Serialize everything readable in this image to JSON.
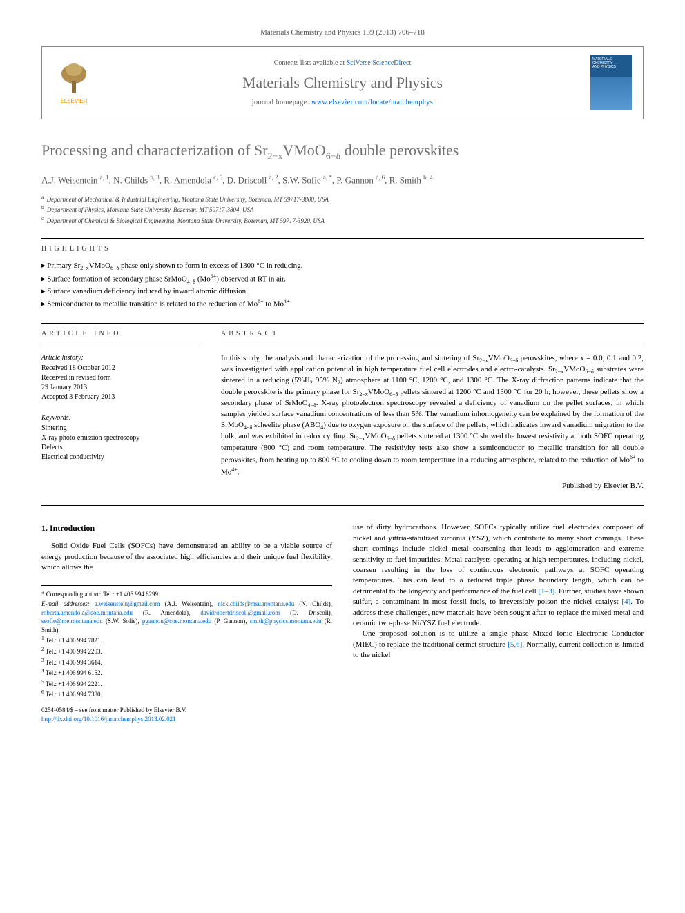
{
  "journal_ref": "Materials Chemistry and Physics 139 (2013) 706–718",
  "header": {
    "contents_prefix": "Contents lists available at ",
    "contents_link": "SciVerse ScienceDirect",
    "journal_name": "Materials Chemistry and Physics",
    "homepage_prefix": "journal homepage: ",
    "homepage_url": "www.elsevier.com/locate/matchemphys",
    "elsevier_label": "ELSEVIER"
  },
  "title_html": "Processing and characterization of Sr<sub>2−x</sub>VMoO<sub>6−δ</sub> double perovskites",
  "authors_html": "A.J. Weisentein <sup>a, 1</sup>, N. Childs <sup>b, 3</sup>, R. Amendola <sup>c, 5</sup>, D. Driscoll <sup>a, 2</sup>, S.W. Sofie <sup>a, *</sup>, P. Gannon <sup>c, 6</sup>, R. Smith <sup>b, 4</sup>",
  "affiliations": [
    {
      "sup": "a",
      "text": "Department of Mechanical & Industrial Engineering, Montana State University, Bozeman, MT 59717-3800, USA"
    },
    {
      "sup": "b",
      "text": "Department of Physics, Montana State University, Bozeman, MT 59717-3804, USA"
    },
    {
      "sup": "c",
      "text": "Department of Chemical & Biological Engineering, Montana State University, Bozeman, MT 59717-3920, USA"
    }
  ],
  "highlights_label": "HIGHLIGHTS",
  "highlights": [
    "▸ Primary Sr<sub>2−x</sub>VMoO<sub>6−δ</sub> phase only shown to form in excess of 1300 °C in reducing.",
    "▸ Surface formation of secondary phase SrMoO<sub>4−δ</sub> (Mo<sup>6+</sup>) observed at RT in air.",
    "▸ Surface vanadium deficiency induced by inward atomic diffusion.",
    "▸ Semiconductor to metallic transition is related to the reduction of Mo<sup>6+</sup> to Mo<sup>4+</sup>"
  ],
  "article_info_label": "ARTICLE INFO",
  "abstract_label": "ABSTRACT",
  "history": {
    "heading": "Article history:",
    "lines": [
      "Received 18 October 2012",
      "Received in revised form",
      "29 January 2013",
      "Accepted 3 February 2013"
    ]
  },
  "keywords": {
    "heading": "Keywords:",
    "items": [
      "Sintering",
      "X-ray photo-emission spectroscopy",
      "Defects",
      "Electrical conductivity"
    ]
  },
  "abstract_html": "In this study, the analysis and characterization of the processing and sintering of Sr<sub>2−x</sub>VMoO<sub>6−δ</sub> perovskites, where x = 0.0, 0.1 and 0.2, was investigated with application potential in high temperature fuel cell electrodes and electro-catalysts. Sr<sub>2−x</sub>VMoO<sub>6−δ</sub> substrates were sintered in a reducing (5%H<sub>2</sub> 95% N<sub>2</sub>) atmosphere at 1100 °C, 1200 °C, and 1300 °C. The X-ray diffraction patterns indicate that the double perovskite is the primary phase for Sr<sub>2−x</sub>VMoO<sub>6−δ</sub> pellets sintered at 1200 °C and 1300 °C for 20 h; however, these pellets show a secondary phase of SrMoO<sub>4−δ</sub>. X-ray photoelectron spectroscopy revealed a deficiency of vanadium on the pellet surfaces, in which samples yielded surface vanadium concentrations of less than 5%. The vanadium inhomogeneity can be explained by the formation of the SrMoO<sub>4−δ</sub> scheelite phase (ABO<sub>4</sub>) due to oxygen exposure on the surface of the pellets, which indicates inward vanadium migration to the bulk, and was exhibited in redox cycling. Sr<sub>2−x</sub>VMoO<sub>6−δ</sub> pellets sintered at 1300 °C showed the lowest resistivity at both SOFC operating temperature (800 °C) and room temperature. The resistivity tests also show a semiconductor to metallic transition for all double perovskites, from heating up to 800 °C to cooling down to room temperature in a reducing atmosphere, related to the reduction of Mo<sup>6+</sup> to Mo<sup>4+</sup>.",
  "published_by": "Published by Elsevier B.V.",
  "intro_heading": "1. Introduction",
  "intro_col1": "Solid Oxide Fuel Cells (SOFCs) have demonstrated an ability to be a viable source of energy production because of the associated high efficiencies and their unique fuel flexibility, which allows the",
  "intro_col2_html": "use of dirty hydrocarbons. However, SOFCs typically utilize fuel electrodes composed of nickel and yittria-stabilized zirconia (YSZ), which contribute to many short comings. These short comings include nickel metal coarsening that leads to agglomeration and extreme sensitivity to fuel impurities. Metal catalysts operating at high temperatures, including nickel, coarsen resulting in the loss of continuous electronic pathways at SOFC operating temperatures. This can lead to a reduced triple phase boundary length, which can be detrimental to the longevity and performance of the fuel cell <a class=\"ref-link\" data-name=\"ref-link\" data-interactable=\"true\">[1–3]</a>. Further, studies have shown sulfur, a contaminant in most fossil fuels, to irreversibly poison the nickel catalyst <a class=\"ref-link\" data-name=\"ref-link\" data-interactable=\"true\">[4]</a>. To address these challenges, new materials have been sought after to replace the mixed metal and ceramic two-phase Ni/YSZ fuel electrode.",
  "intro_col2_p2_html": "One proposed solution is to utilize a single phase Mixed Ionic Electronic Conductor (MIEC) to replace the traditional cermet structure <a class=\"ref-link\" data-name=\"ref-link\" data-interactable=\"true\">[5,6]</a>. Normally, current collection is limited to the nickel",
  "footnotes": {
    "corresponding": "* Corresponding author. Tel.: +1 406 994 6299.",
    "emails_label": "E-mail addresses:",
    "emails_html": "<a data-name=\"email-link\" data-interactable=\"true\">a.weisenstein@gmail.com</a> (A.J. Weisentein), <a data-name=\"email-link\" data-interactable=\"true\">nick.childs@msu.montana.edu</a> (N. Childs), <a data-name=\"email-link\" data-interactable=\"true\">roberta.amendola@coe.montana.edu</a> (R. Amendola), <a data-name=\"email-link\" data-interactable=\"true\">davidrobertdriscoll@gmail.com</a> (D. Driscoll), <a data-name=\"email-link\" data-interactable=\"true\">ssofie@me.montana.edu</a> (S.W. Sofie), <a data-name=\"email-link\" data-interactable=\"true\">pgannon@coe.montana.edu</a> (P. Gannon), <a data-name=\"email-link\" data-interactable=\"true\">smith@physics.montana.edu</a> (R. Smith).",
    "tels": [
      {
        "sup": "1",
        "text": "Tel.: +1 406 994 7821."
      },
      {
        "sup": "2",
        "text": "Tel.: +1 406 994 2203."
      },
      {
        "sup": "3",
        "text": "Tel.: +1 406 994 3614."
      },
      {
        "sup": "4",
        "text": "Tel.: +1 406 994 6152."
      },
      {
        "sup": "5",
        "text": "Tel.: +1 406 994 2221."
      },
      {
        "sup": "6",
        "text": "Tel.: +1 406 994 7380."
      }
    ]
  },
  "footer": {
    "line1": "0254-0584/$ – see front matter Published by Elsevier B.V.",
    "doi": "http://dx.doi.org/10.1016/j.matchemphys.2013.02.021"
  },
  "colors": {
    "link": "#0066cc",
    "title": "#707070",
    "text": "#000000"
  }
}
